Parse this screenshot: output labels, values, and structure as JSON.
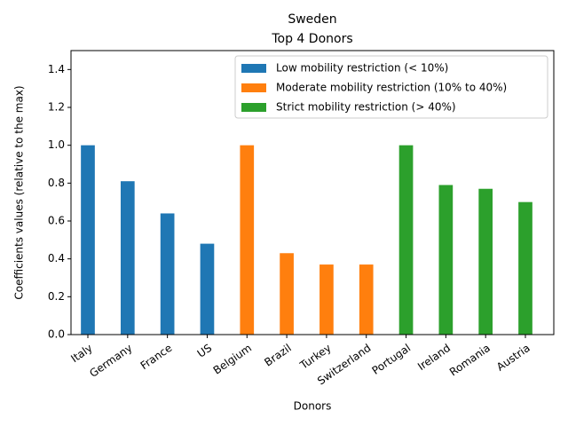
{
  "chart_data": {
    "type": "bar",
    "title": "Sweden",
    "subtitle": "Top 4 Donors",
    "x_label": "Donors",
    "y_label": "Coefficients values (relative to the max)",
    "categories": [
      "Italy",
      "Germany",
      "France",
      "US",
      "Belgium",
      "Brazil",
      "Turkey",
      "Switzerland",
      "Portugal",
      "Ireland",
      "Romania",
      "Austria"
    ],
    "series": [
      {
        "name": "Low mobility restriction (< 10%)",
        "color": "#1f77b4",
        "values": [
          1.0,
          0.81,
          0.64,
          0.48,
          null,
          null,
          null,
          null,
          null,
          null,
          null,
          null
        ]
      },
      {
        "name": "Moderate mobility restriction (10% to 40%)",
        "color": "#ff7f0e",
        "values": [
          null,
          null,
          null,
          null,
          1.0,
          0.43,
          0.37,
          0.37,
          null,
          null,
          null,
          null
        ]
      },
      {
        "name": "Strict mobility restriction (> 40%)",
        "color": "#2ca02c",
        "values": [
          null,
          null,
          null,
          null,
          null,
          null,
          null,
          null,
          1.0,
          0.79,
          0.77,
          0.7
        ]
      }
    ],
    "ylim": [
      0,
      1.5
    ],
    "yticks": [
      {
        "value": 0,
        "label": "0.0"
      },
      0.2,
      0.4,
      0.6,
      0.8,
      {
        "value": 1,
        "label": "1.0"
      },
      1.2,
      1.4
    ],
    "legend": "upper right",
    "grid": false
  }
}
